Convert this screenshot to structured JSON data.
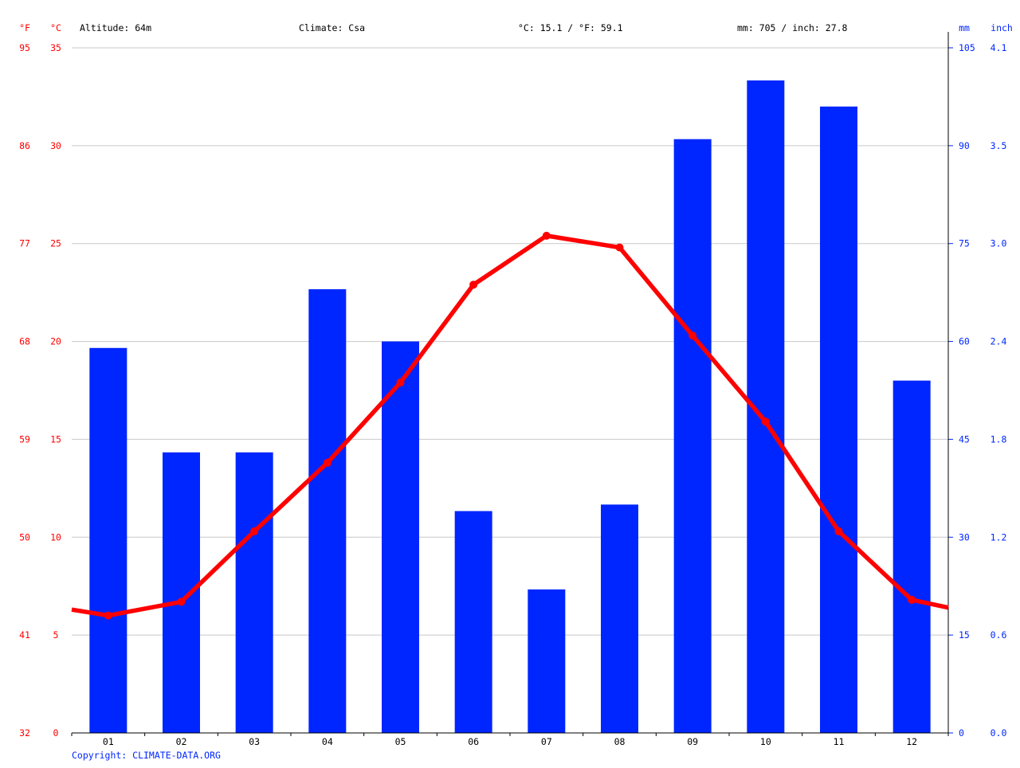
{
  "header": {
    "f_unit": "°F",
    "c_unit": "°C",
    "altitude": "Altitude: 64m",
    "climate": "Climate: Csa",
    "temp_avg": "°C: 15.1 / °F: 59.1",
    "precip_total": "mm: 705 / inch: 27.8",
    "mm_unit": "mm",
    "inch_unit": "inch"
  },
  "copyright": "Copyright: CLIMATE-DATA.ORG",
  "colors": {
    "temp": "#ff0000",
    "precip": "#0026ff",
    "grid": "#c8c8c8",
    "axis": "#000000",
    "text": "#000000"
  },
  "chart_data": {
    "type": "bar",
    "categories": [
      "01",
      "02",
      "03",
      "04",
      "05",
      "06",
      "07",
      "08",
      "09",
      "10",
      "11",
      "12"
    ],
    "series": [
      {
        "type": "bar",
        "axis": "right",
        "unit": "mm",
        "values": [
          59,
          43,
          43,
          68,
          60,
          34,
          22,
          35,
          91,
          100,
          96,
          54
        ]
      },
      {
        "type": "line",
        "axis": "left",
        "unit": "°C",
        "values": [
          6.0,
          6.7,
          10.3,
          13.8,
          17.9,
          22.9,
          25.4,
          24.8,
          20.3,
          15.9,
          10.3,
          6.8
        ],
        "edge_values": [
          6.3,
          6.4
        ]
      }
    ],
    "axes": {
      "celsius": {
        "ylim": [
          0,
          35
        ],
        "ticks": [
          "0",
          "5",
          "10",
          "15",
          "20",
          "25",
          "30",
          "35"
        ]
      },
      "fahrenheit": {
        "ticks": [
          "32",
          "41",
          "50",
          "59",
          "68",
          "77",
          "86",
          "95"
        ]
      },
      "mm": {
        "ylim": [
          0,
          105
        ],
        "ticks": [
          "0",
          "15",
          "30",
          "45",
          "60",
          "75",
          "90",
          "105"
        ]
      },
      "inch": {
        "ticks": [
          "0.0",
          "0.6",
          "1.2",
          "1.8",
          "2.4",
          "3.0",
          "3.5",
          "4.1"
        ]
      }
    },
    "grid": true,
    "legend": "none"
  }
}
